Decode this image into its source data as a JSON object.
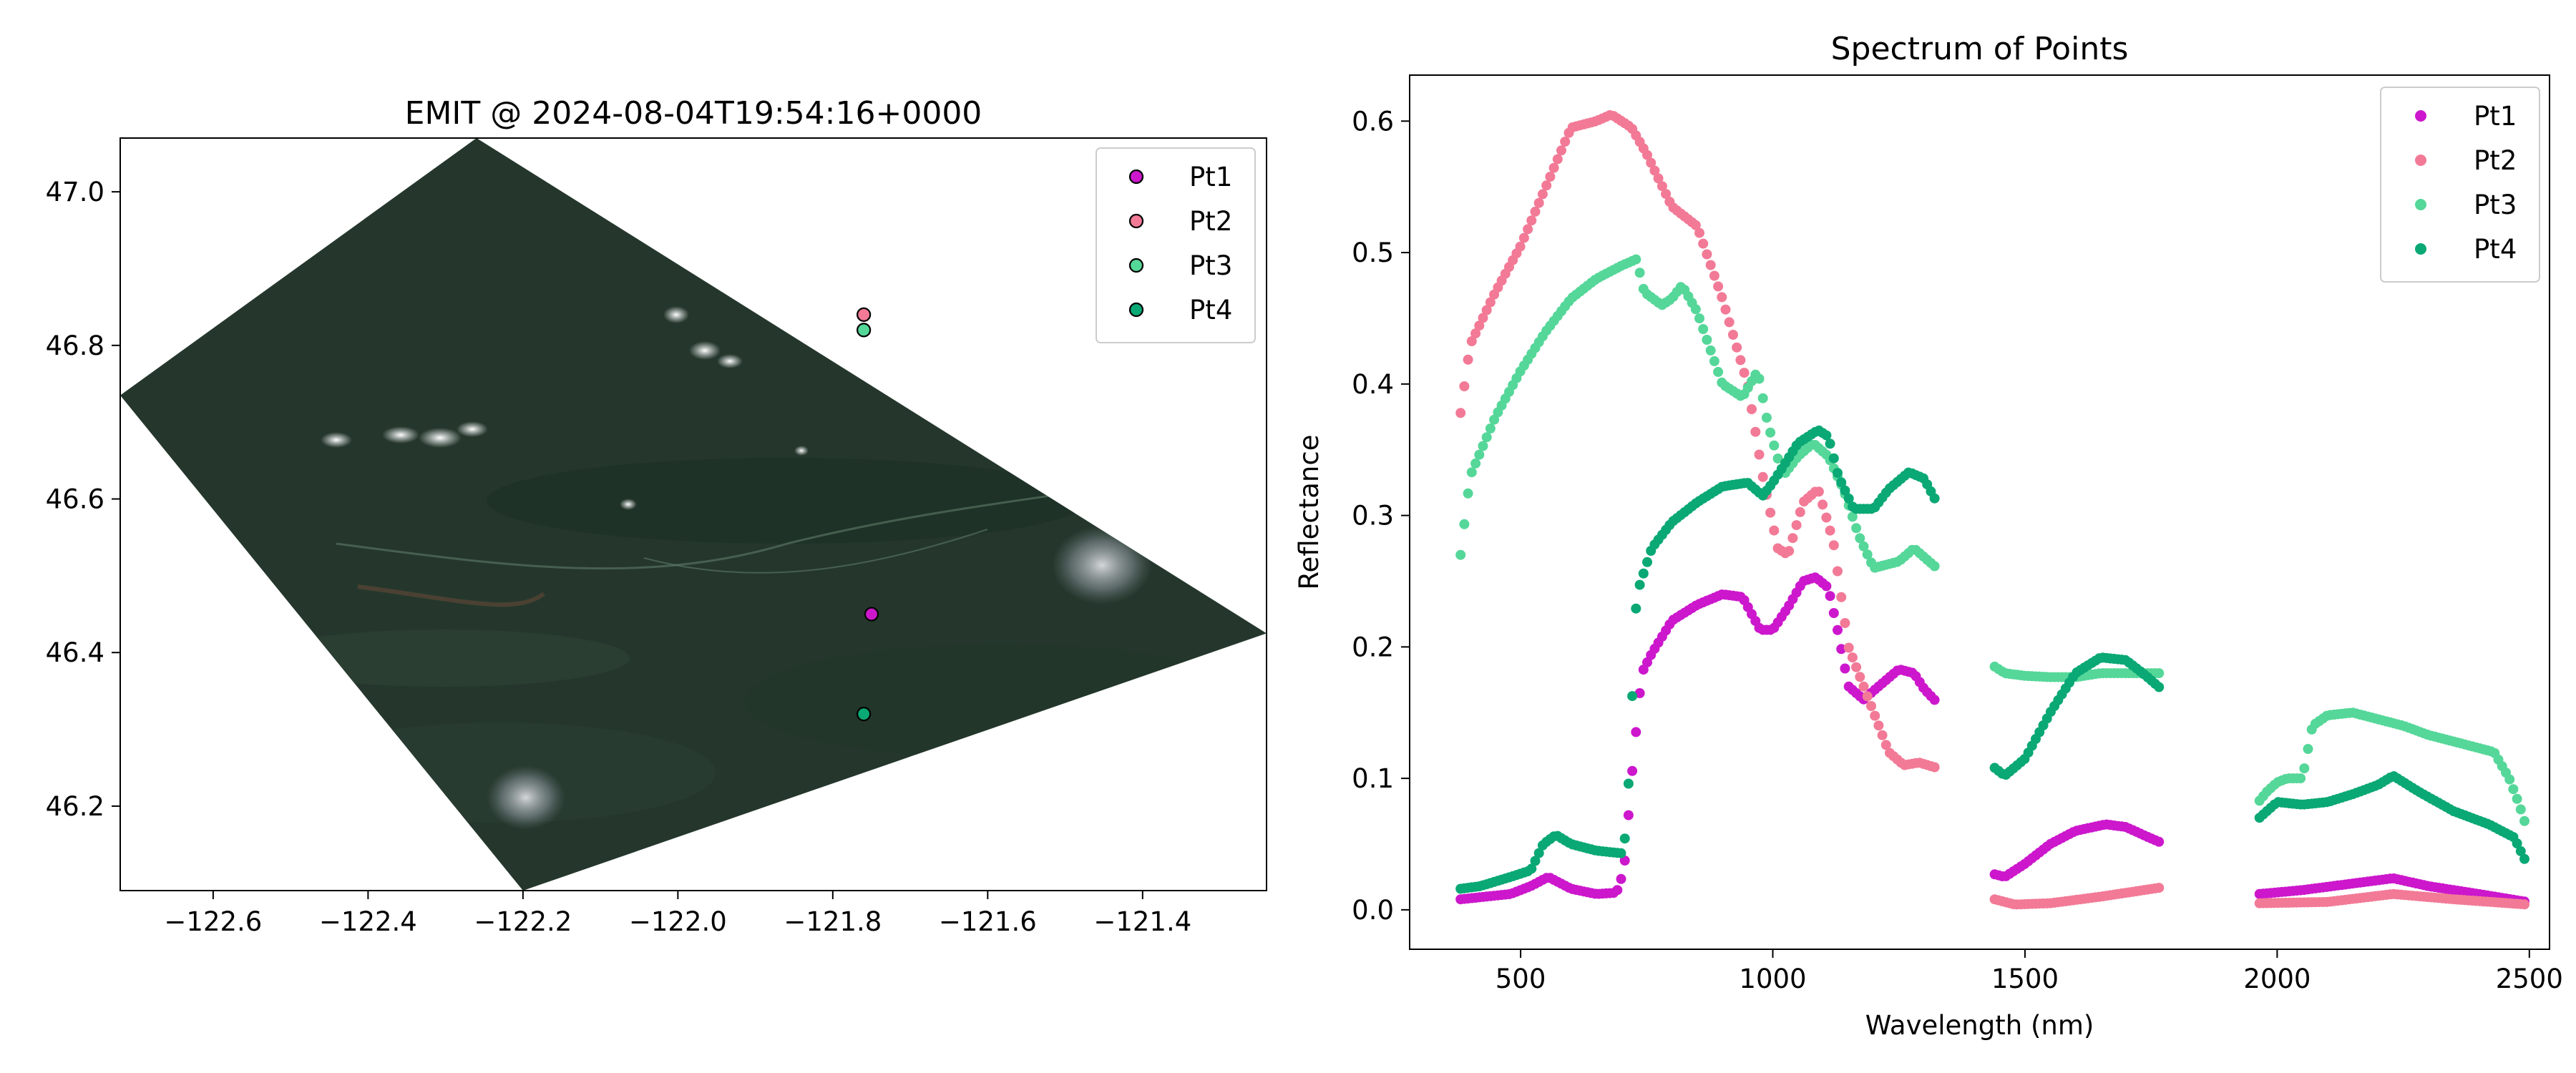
{
  "chart_data": [
    {
      "type": "scatter",
      "title": "EMIT @ 2024-08-04T19:54:16+0000",
      "xlabel": "",
      "ylabel": "",
      "xlim": [
        -122.72,
        -121.24
      ],
      "ylim": [
        46.09,
        47.07
      ],
      "xticks": [
        -122.6,
        -122.4,
        -122.2,
        -122.0,
        -121.8,
        -121.6,
        -121.4
      ],
      "xtick_labels": [
        "−122.6",
        "−122.4",
        "−122.2",
        "−122.0",
        "−121.8",
        "−121.6",
        "−121.4"
      ],
      "yticks": [
        46.2,
        46.4,
        46.6,
        46.8,
        47.0
      ],
      "ytick_labels": [
        "46.2",
        "46.4",
        "46.6",
        "46.8",
        "47.0"
      ],
      "scene_corners": [
        [
          -122.72,
          46.735
        ],
        [
          -122.26,
          47.07
        ],
        [
          -121.24,
          46.425
        ],
        [
          -122.2,
          46.09
        ]
      ],
      "legend_position": "upper right",
      "points": [
        {
          "name": "Pt1",
          "lon": -121.75,
          "lat": 46.45,
          "color": "#cc17cc"
        },
        {
          "name": "Pt2",
          "lon": -121.76,
          "lat": 46.84,
          "color": "#f27a96"
        },
        {
          "name": "Pt3",
          "lon": -121.76,
          "lat": 46.82,
          "color": "#55d799"
        },
        {
          "name": "Pt4",
          "lon": -121.76,
          "lat": 46.32,
          "color": "#0aa874"
        }
      ]
    },
    {
      "type": "scatter",
      "title": "Spectrum of Points",
      "xlabel": "Wavelength (nm)",
      "ylabel": "Reflectance",
      "xlim": [
        280,
        2540
      ],
      "ylim": [
        -0.03,
        0.635
      ],
      "xticks": [
        500,
        1000,
        1500,
        2000,
        2500
      ],
      "xtick_labels": [
        "500",
        "1000",
        "1500",
        "2000",
        "2500"
      ],
      "yticks": [
        0.0,
        0.1,
        0.2,
        0.3,
        0.4,
        0.5,
        0.6
      ],
      "ytick_labels": [
        "0.0",
        "0.1",
        "0.2",
        "0.3",
        "0.4",
        "0.5",
        "0.6"
      ],
      "legend_position": "upper right",
      "sampling_nm": 7.4,
      "segments": [
        [
          381,
          1325
        ],
        [
          1440,
          1770
        ],
        [
          1965,
          2495
        ]
      ],
      "series": [
        {
          "name": "Pt1",
          "color": "#cc17cc",
          "knots": [
            [
              381,
              0.008
            ],
            [
              480,
              0.012
            ],
            [
              520,
              0.018
            ],
            [
              555,
              0.025
            ],
            [
              600,
              0.016
            ],
            [
              650,
              0.012
            ],
            [
              690,
              0.013
            ],
            [
              705,
              0.03
            ],
            [
              720,
              0.1
            ],
            [
              740,
              0.18
            ],
            [
              760,
              0.195
            ],
            [
              800,
              0.22
            ],
            [
              850,
              0.232
            ],
            [
              900,
              0.24
            ],
            [
              940,
              0.238
            ],
            [
              975,
              0.213
            ],
            [
              1000,
              0.213
            ],
            [
              1030,
              0.23
            ],
            [
              1060,
              0.25
            ],
            [
              1085,
              0.253
            ],
            [
              1110,
              0.245
            ],
            [
              1130,
              0.21
            ],
            [
              1150,
              0.17
            ],
            [
              1180,
              0.16
            ],
            [
              1210,
              0.17
            ],
            [
              1250,
              0.183
            ],
            [
              1280,
              0.18
            ],
            [
              1300,
              0.168
            ],
            [
              1325,
              0.158
            ],
            [
              1440,
              0.027
            ],
            [
              1460,
              0.025
            ],
            [
              1500,
              0.035
            ],
            [
              1550,
              0.05
            ],
            [
              1600,
              0.06
            ],
            [
              1660,
              0.065
            ],
            [
              1700,
              0.063
            ],
            [
              1740,
              0.056
            ],
            [
              1770,
              0.051
            ],
            [
              1965,
              0.012
            ],
            [
              2050,
              0.015
            ],
            [
              2150,
              0.02
            ],
            [
              2230,
              0.024
            ],
            [
              2300,
              0.018
            ],
            [
              2400,
              0.012
            ],
            [
              2495,
              0.006
            ]
          ]
        },
        {
          "name": "Pt2",
          "color": "#f27a96",
          "knots": [
            [
              381,
              0.378
            ],
            [
              400,
              0.43
            ],
            [
              450,
              0.47
            ],
            [
              500,
              0.505
            ],
            [
              550,
              0.55
            ],
            [
              600,
              0.595
            ],
            [
              650,
              0.6
            ],
            [
              680,
              0.605
            ],
            [
              720,
              0.595
            ],
            [
              750,
              0.575
            ],
            [
              800,
              0.535
            ],
            [
              850,
              0.52
            ],
            [
              900,
              0.465
            ],
            [
              950,
              0.4
            ],
            [
              980,
              0.33
            ],
            [
              1010,
              0.275
            ],
            [
              1030,
              0.27
            ],
            [
              1060,
              0.31
            ],
            [
              1090,
              0.32
            ],
            [
              1120,
              0.28
            ],
            [
              1150,
              0.2
            ],
            [
              1200,
              0.15
            ],
            [
              1230,
              0.12
            ],
            [
              1260,
              0.11
            ],
            [
              1290,
              0.112
            ],
            [
              1325,
              0.108
            ],
            [
              1440,
              0.008
            ],
            [
              1480,
              0.004
            ],
            [
              1550,
              0.005
            ],
            [
              1650,
              0.01
            ],
            [
              1770,
              0.017
            ],
            [
              1965,
              0.005
            ],
            [
              2100,
              0.006
            ],
            [
              2230,
              0.012
            ],
            [
              2350,
              0.008
            ],
            [
              2495,
              0.004
            ]
          ]
        },
        {
          "name": "Pt3",
          "color": "#55d799",
          "knots": [
            [
              381,
              0.27
            ],
            [
              400,
              0.33
            ],
            [
              450,
              0.375
            ],
            [
              500,
              0.41
            ],
            [
              550,
              0.44
            ],
            [
              600,
              0.465
            ],
            [
              650,
              0.48
            ],
            [
              700,
              0.49
            ],
            [
              730,
              0.495
            ],
            [
              745,
              0.47
            ],
            [
              780,
              0.46
            ],
            [
              800,
              0.465
            ],
            [
              820,
              0.475
            ],
            [
              850,
              0.455
            ],
            [
              900,
              0.4
            ],
            [
              940,
              0.39
            ],
            [
              970,
              0.41
            ],
            [
              990,
              0.37
            ],
            [
              1020,
              0.33
            ],
            [
              1050,
              0.345
            ],
            [
              1080,
              0.355
            ],
            [
              1110,
              0.345
            ],
            [
              1140,
              0.32
            ],
            [
              1170,
              0.285
            ],
            [
              1200,
              0.26
            ],
            [
              1250,
              0.265
            ],
            [
              1280,
              0.275
            ],
            [
              1325,
              0.26
            ],
            [
              1440,
              0.185
            ],
            [
              1460,
              0.18
            ],
            [
              1500,
              0.178
            ],
            [
              1550,
              0.177
            ],
            [
              1600,
              0.177
            ],
            [
              1650,
              0.18
            ],
            [
              1700,
              0.18
            ],
            [
              1770,
              0.18
            ],
            [
              1965,
              0.083
            ],
            [
              1980,
              0.09
            ],
            [
              2000,
              0.097
            ],
            [
              2020,
              0.1
            ],
            [
              2050,
              0.1
            ],
            [
              2070,
              0.14
            ],
            [
              2100,
              0.148
            ],
            [
              2150,
              0.15
            ],
            [
              2200,
              0.145
            ],
            [
              2250,
              0.14
            ],
            [
              2300,
              0.133
            ],
            [
              2350,
              0.128
            ],
            [
              2400,
              0.123
            ],
            [
              2430,
              0.12
            ],
            [
              2460,
              0.1
            ],
            [
              2480,
              0.08
            ],
            [
              2495,
              0.062
            ]
          ]
        },
        {
          "name": "Pt4",
          "color": "#0aa874",
          "knots": [
            [
              381,
              0.016
            ],
            [
              420,
              0.018
            ],
            [
              480,
              0.025
            ],
            [
              520,
              0.03
            ],
            [
              545,
              0.05
            ],
            [
              570,
              0.057
            ],
            [
              600,
              0.05
            ],
            [
              650,
              0.045
            ],
            [
              700,
              0.043
            ],
            [
              710,
              0.06
            ],
            [
              730,
              0.24
            ],
            [
              760,
              0.275
            ],
            [
              800,
              0.295
            ],
            [
              850,
              0.31
            ],
            [
              900,
              0.322
            ],
            [
              950,
              0.325
            ],
            [
              980,
              0.315
            ],
            [
              1000,
              0.325
            ],
            [
              1050,
              0.355
            ],
            [
              1090,
              0.365
            ],
            [
              1110,
              0.36
            ],
            [
              1130,
              0.33
            ],
            [
              1160,
              0.305
            ],
            [
              1200,
              0.305
            ],
            [
              1230,
              0.32
            ],
            [
              1270,
              0.333
            ],
            [
              1300,
              0.328
            ],
            [
              1325,
              0.31
            ],
            [
              1440,
              0.108
            ],
            [
              1460,
              0.102
            ],
            [
              1500,
              0.115
            ],
            [
              1550,
              0.15
            ],
            [
              1600,
              0.18
            ],
            [
              1650,
              0.192
            ],
            [
              1700,
              0.19
            ],
            [
              1740,
              0.178
            ],
            [
              1770,
              0.168
            ],
            [
              1965,
              0.07
            ],
            [
              2000,
              0.082
            ],
            [
              2050,
              0.08
            ],
            [
              2100,
              0.082
            ],
            [
              2150,
              0.088
            ],
            [
              2200,
              0.095
            ],
            [
              2230,
              0.102
            ],
            [
              2280,
              0.09
            ],
            [
              2350,
              0.075
            ],
            [
              2420,
              0.065
            ],
            [
              2470,
              0.055
            ],
            [
              2495,
              0.035
            ]
          ]
        }
      ]
    }
  ]
}
